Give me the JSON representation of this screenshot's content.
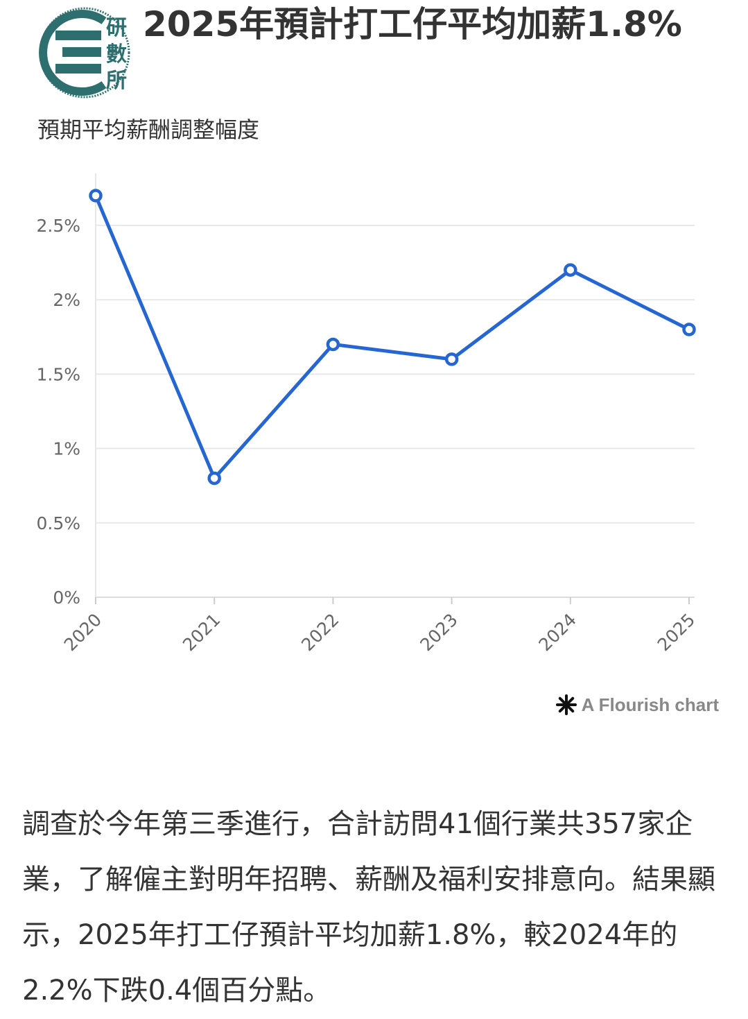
{
  "header": {
    "logo_text": "研數所",
    "title": "2025年預計打工仔平均加薪1.8%",
    "subtitle": "預期平均薪酬調整幅度"
  },
  "chart_data": {
    "type": "line",
    "title": "2025年預計打工仔平均加薪1.8%",
    "subtitle": "預期平均薪酬調整幅度",
    "x": [
      "2020",
      "2021",
      "2022",
      "2023",
      "2024",
      "2025"
    ],
    "series": [
      {
        "values": [
          2.7,
          0.8,
          1.7,
          1.6,
          2.2,
          1.8
        ],
        "color": "#2566d0"
      }
    ],
    "ylim": [
      0,
      2.7
    ],
    "yticks": [
      0,
      0.5,
      1,
      1.5,
      2,
      2.5
    ],
    "ytick_labels": [
      "0%",
      "0.5%",
      "1%",
      "1.5%",
      "2%",
      "2.5%"
    ],
    "grid": true,
    "xlabel": "",
    "ylabel": ""
  },
  "credit": {
    "text": "A Flourish chart"
  },
  "article": {
    "text": "調查於今年第三季進行，合計訪問41個行業共357家企業，了解僱主對明年招聘、薪酬及福利安排意向。結果顯示，2025年打工仔預計平均加薪1.8%，較2024年的2.2%下跌0.4個百分點。"
  }
}
